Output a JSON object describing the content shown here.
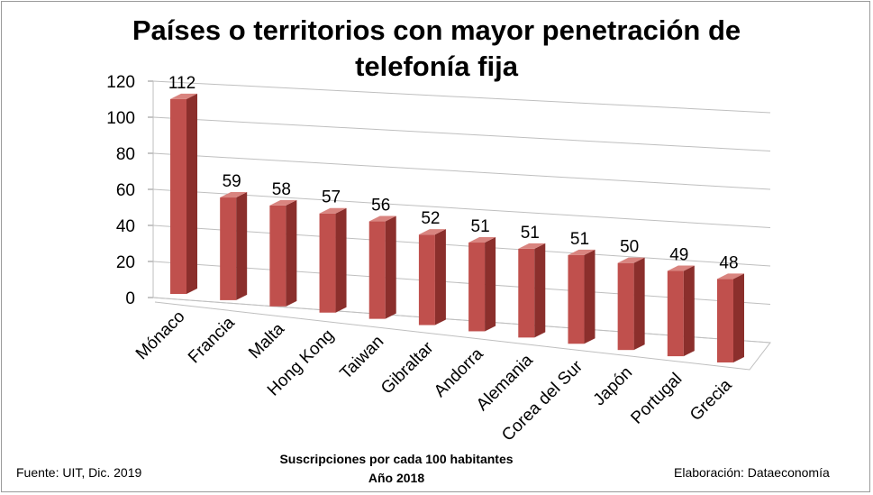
{
  "chart_data": {
    "type": "bar",
    "title": "Países o territorios con mayor penetración de telefonía fija",
    "title_lines": [
      "Países o territorios con mayor penetración de",
      "telefonía fija"
    ],
    "categories": [
      "Mónaco",
      "Francia",
      "Malta",
      "Hong Kong",
      "Taiwan",
      "Gibraltar",
      "Andorra",
      "Alemania",
      "Corea del Sur",
      "Japón",
      "Portugal",
      "Grecia"
    ],
    "values": [
      112,
      59,
      58,
      57,
      56,
      52,
      51,
      51,
      51,
      50,
      49,
      48
    ],
    "data_labels": [
      "112",
      "59",
      "58",
      "57",
      "56",
      "52",
      "51",
      "51",
      "51",
      "50",
      "49",
      "48"
    ],
    "ylim": [
      0,
      120
    ],
    "yticks": [
      "0",
      "20",
      "40",
      "60",
      "80",
      "100",
      "120"
    ],
    "grid": true,
    "bar_color": "#c0504d",
    "xlabel_line1": "Suscripciones por cada 100 habitantes",
    "xlabel_line2": "Año 2018"
  },
  "footer": {
    "source": "Fuente:  UIT,  Dic. 2019",
    "credit": "Elaboración: Dataeconomía"
  }
}
